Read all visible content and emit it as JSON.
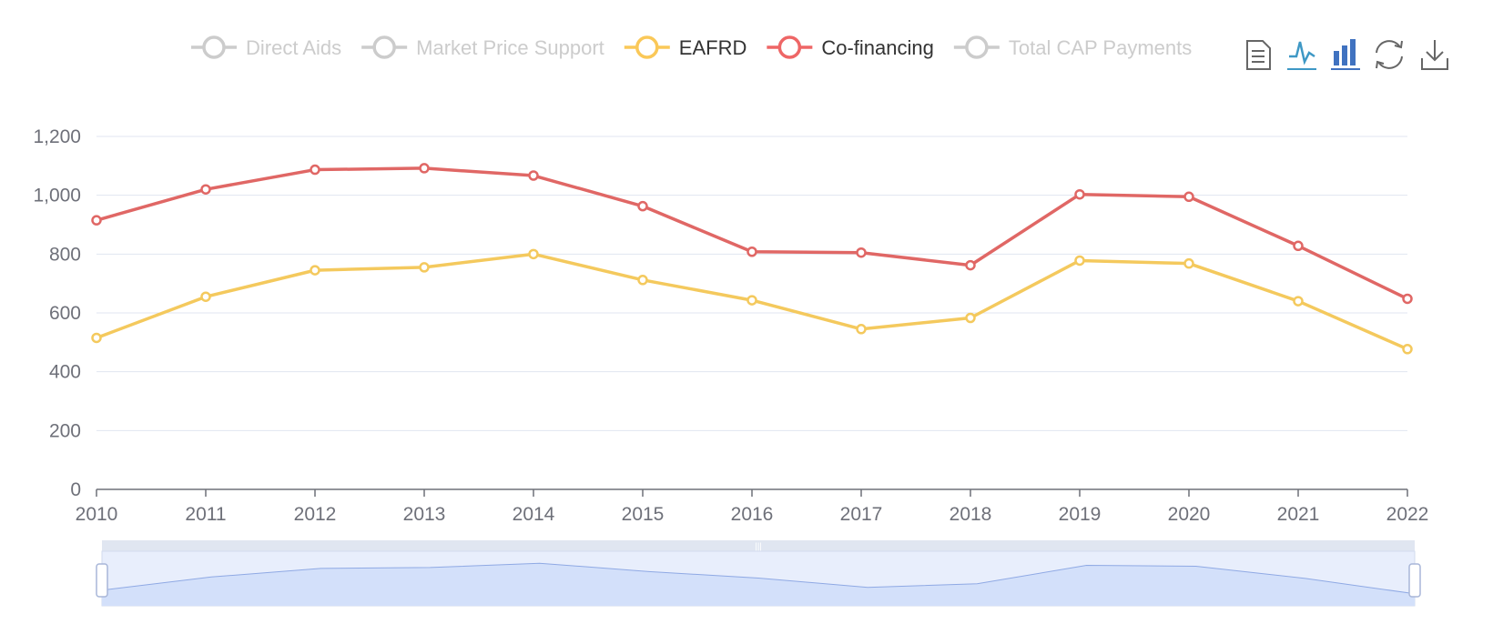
{
  "legend": {
    "items": [
      {
        "label": "Direct Aids",
        "color": "#5470c6",
        "active": false
      },
      {
        "label": "Market Price Support",
        "color": "#91cc75",
        "active": false
      },
      {
        "label": "EAFRD",
        "color": "#fac858",
        "active": true
      },
      {
        "label": "Co-financing",
        "color": "#ee6666",
        "active": true
      },
      {
        "label": "Total CAP Payments",
        "color": "#73c0de",
        "active": false
      }
    ],
    "inactive_color": "#cccccc"
  },
  "toolbox": {
    "icons": [
      "data-view-icon",
      "line-chart-icon",
      "bar-chart-icon",
      "restore-icon",
      "download-icon"
    ]
  },
  "chart_data": {
    "type": "line",
    "x": [
      "2010",
      "2011",
      "2012",
      "2013",
      "2014",
      "2015",
      "2016",
      "2017",
      "2018",
      "2019",
      "2020",
      "2021",
      "2022"
    ],
    "y_ticks": [
      "0",
      "200",
      "400",
      "600",
      "800",
      "1,000",
      "1,200"
    ],
    "ylim": [
      0,
      1200
    ],
    "grid": true,
    "series": [
      {
        "name": "EAFRD",
        "color": "#f4c95d",
        "values": [
          515,
          655,
          745,
          755,
          800,
          712,
          643,
          545,
          583,
          778,
          768,
          640,
          477
        ]
      },
      {
        "name": "Co-financing",
        "color": "#e06765",
        "values": [
          915,
          1020,
          1087,
          1092,
          1067,
          963,
          808,
          805,
          762,
          1003,
          995,
          828,
          648
        ]
      }
    ],
    "data_zoom": {
      "preview_values": [
        515,
        655,
        745,
        755,
        800,
        712,
        643,
        545,
        583,
        778,
        768,
        640,
        477
      ],
      "range": [
        0,
        100
      ]
    }
  }
}
